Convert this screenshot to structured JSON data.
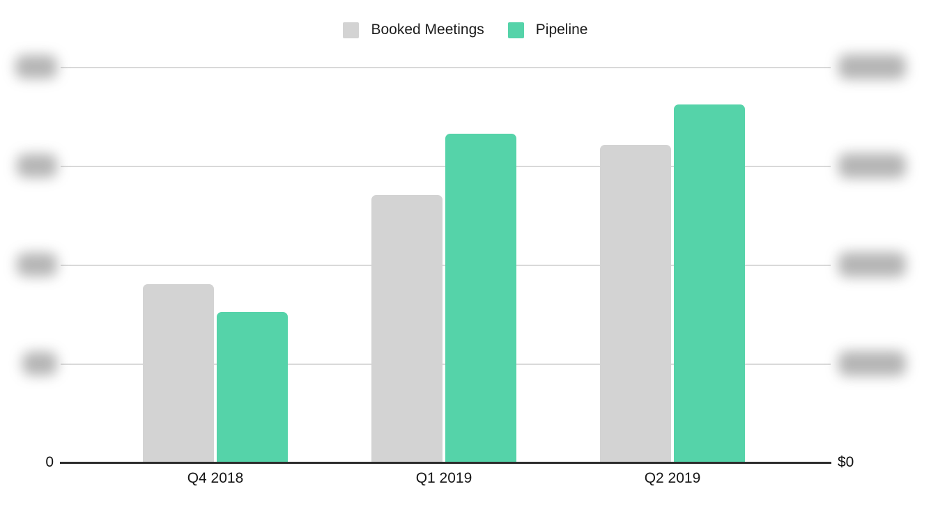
{
  "legend": {
    "items": [
      {
        "label": "Booked Meetings",
        "color": "#d3d3d3"
      },
      {
        "label": "Pipeline",
        "color": "#55d3a9"
      }
    ]
  },
  "chart_data": {
    "type": "bar",
    "title": "",
    "categories": [
      "Q4 2018",
      "Q1 2019",
      "Q2 2019"
    ],
    "series": [
      {
        "name": "Booked Meetings",
        "color": "#d3d3d3",
        "axis": "left",
        "values_pct_of_axis_max": [
          45.1,
          67.6,
          80.3
        ]
      },
      {
        "name": "Pipeline",
        "color": "#55d3a9",
        "axis": "right",
        "values_pct_of_axis_max": [
          38.0,
          83.1,
          90.5
        ]
      }
    ],
    "left_axis": {
      "zero_label": "0",
      "redacted_tick_count": 4
    },
    "right_axis": {
      "zero_label": "$0",
      "redacted_tick_count": 4
    },
    "gridline_count": 5,
    "grid": true,
    "legend_position": "top",
    "note": "All axis tick labels above zero are blurred/redacted in the source image; bar values are expressed as percent of the top gridline."
  }
}
